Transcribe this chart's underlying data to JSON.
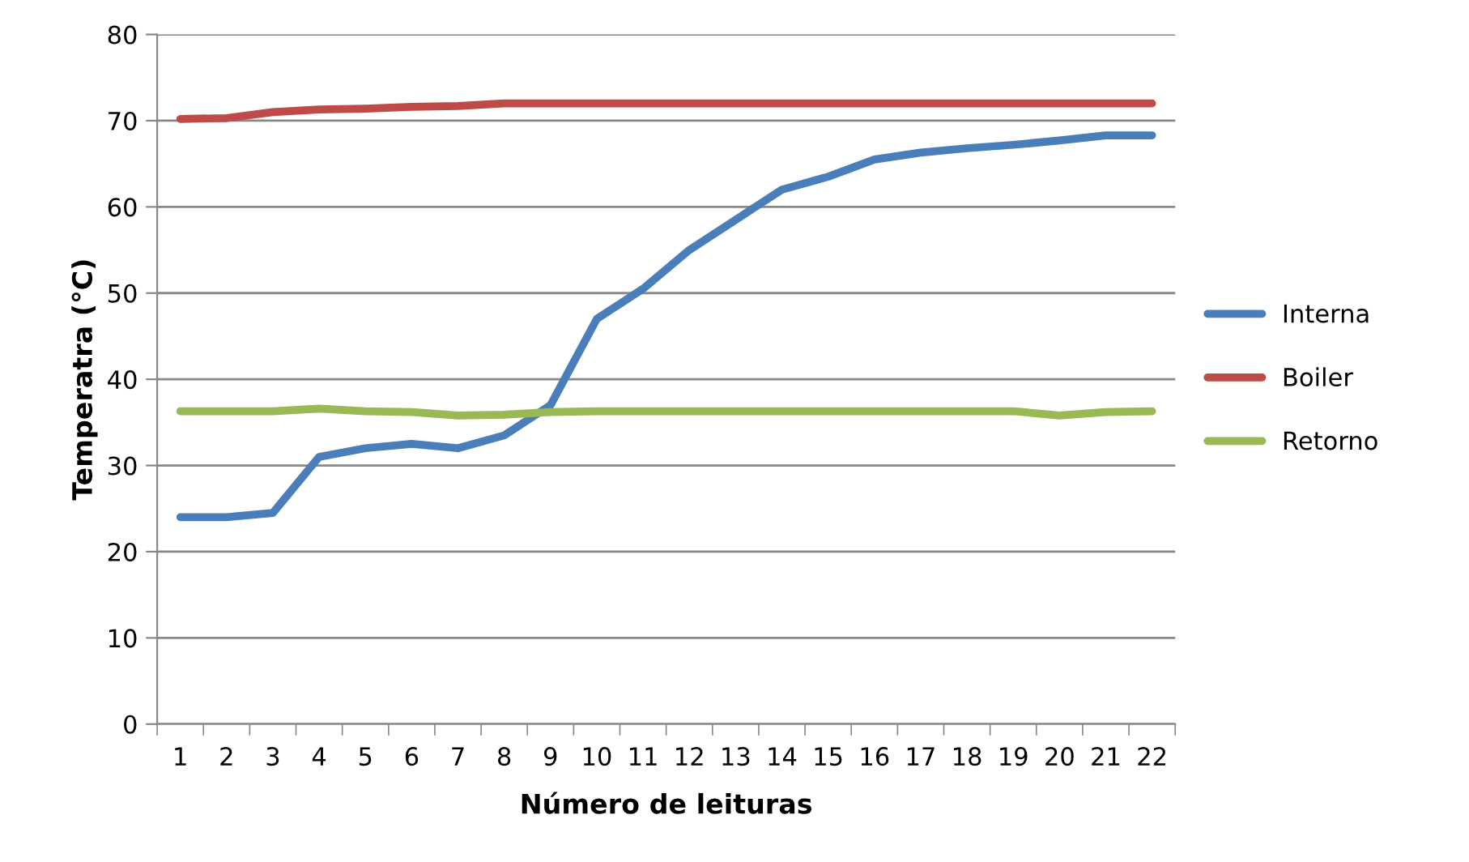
{
  "chart_data": {
    "type": "line",
    "xlabel": "Número de leituras",
    "ylabel": "Temperatra (°C)",
    "categories": [
      "1",
      "2",
      "3",
      "4",
      "5",
      "6",
      "7",
      "8",
      "9",
      "10",
      "11",
      "12",
      "13",
      "14",
      "15",
      "16",
      "17",
      "18",
      "19",
      "20",
      "21",
      "22"
    ],
    "series": [
      {
        "name": "Interna",
        "color": "#4a7ebb",
        "values": [
          24,
          24,
          24.5,
          31,
          32,
          32.5,
          32,
          33.5,
          37,
          47,
          50.5,
          55,
          58.5,
          62,
          63.5,
          65.5,
          66.3,
          66.8,
          67.2,
          67.7,
          68.3,
          68.3
        ]
      },
      {
        "name": "Boiler",
        "color": "#be4b48",
        "values": [
          70.2,
          70.3,
          71,
          71.3,
          71.4,
          71.6,
          71.7,
          72,
          72,
          72,
          72,
          72,
          72,
          72,
          72,
          72,
          72,
          72,
          72,
          72,
          72,
          72
        ]
      },
      {
        "name": "Retorno",
        "color": "#98b954",
        "values": [
          36.3,
          36.3,
          36.3,
          36.6,
          36.3,
          36.2,
          35.8,
          35.9,
          36.2,
          36.3,
          36.3,
          36.3,
          36.3,
          36.3,
          36.3,
          36.3,
          36.3,
          36.3,
          36.3,
          35.8,
          36.2,
          36.3
        ]
      }
    ],
    "ylim": [
      0,
      80
    ],
    "yticks": [
      0,
      10,
      20,
      30,
      40,
      50,
      60,
      70,
      80
    ],
    "grid": "y",
    "legend": "right",
    "marker": "none",
    "line_style": "solid"
  }
}
